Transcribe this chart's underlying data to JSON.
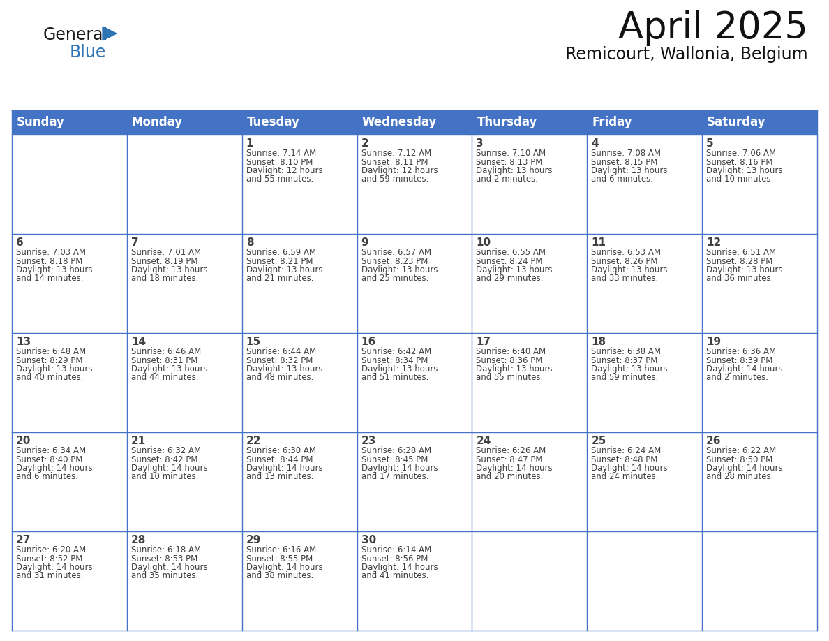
{
  "title": "April 2025",
  "subtitle": "Remicourt, Wallonia, Belgium",
  "header_bg": "#4472C4",
  "header_text_color": "#FFFFFF",
  "day_headers": [
    "Sunday",
    "Monday",
    "Tuesday",
    "Wednesday",
    "Thursday",
    "Friday",
    "Saturday"
  ],
  "title_fontsize": 38,
  "subtitle_fontsize": 17,
  "header_fontsize": 12,
  "cell_day_fontsize": 11,
  "cell_info_fontsize": 8.5,
  "grid_color": "#4472C4",
  "text_color": "#404040",
  "logo_general_color": "#1a1a1a",
  "logo_blue_color": "#2E75B6",
  "weeks": [
    [
      {
        "day": "",
        "info": ""
      },
      {
        "day": "",
        "info": ""
      },
      {
        "day": "1",
        "info": "Sunrise: 7:14 AM\nSunset: 8:10 PM\nDaylight: 12 hours\nand 55 minutes."
      },
      {
        "day": "2",
        "info": "Sunrise: 7:12 AM\nSunset: 8:11 PM\nDaylight: 12 hours\nand 59 minutes."
      },
      {
        "day": "3",
        "info": "Sunrise: 7:10 AM\nSunset: 8:13 PM\nDaylight: 13 hours\nand 2 minutes."
      },
      {
        "day": "4",
        "info": "Sunrise: 7:08 AM\nSunset: 8:15 PM\nDaylight: 13 hours\nand 6 minutes."
      },
      {
        "day": "5",
        "info": "Sunrise: 7:06 AM\nSunset: 8:16 PM\nDaylight: 13 hours\nand 10 minutes."
      }
    ],
    [
      {
        "day": "6",
        "info": "Sunrise: 7:03 AM\nSunset: 8:18 PM\nDaylight: 13 hours\nand 14 minutes."
      },
      {
        "day": "7",
        "info": "Sunrise: 7:01 AM\nSunset: 8:19 PM\nDaylight: 13 hours\nand 18 minutes."
      },
      {
        "day": "8",
        "info": "Sunrise: 6:59 AM\nSunset: 8:21 PM\nDaylight: 13 hours\nand 21 minutes."
      },
      {
        "day": "9",
        "info": "Sunrise: 6:57 AM\nSunset: 8:23 PM\nDaylight: 13 hours\nand 25 minutes."
      },
      {
        "day": "10",
        "info": "Sunrise: 6:55 AM\nSunset: 8:24 PM\nDaylight: 13 hours\nand 29 minutes."
      },
      {
        "day": "11",
        "info": "Sunrise: 6:53 AM\nSunset: 8:26 PM\nDaylight: 13 hours\nand 33 minutes."
      },
      {
        "day": "12",
        "info": "Sunrise: 6:51 AM\nSunset: 8:28 PM\nDaylight: 13 hours\nand 36 minutes."
      }
    ],
    [
      {
        "day": "13",
        "info": "Sunrise: 6:48 AM\nSunset: 8:29 PM\nDaylight: 13 hours\nand 40 minutes."
      },
      {
        "day": "14",
        "info": "Sunrise: 6:46 AM\nSunset: 8:31 PM\nDaylight: 13 hours\nand 44 minutes."
      },
      {
        "day": "15",
        "info": "Sunrise: 6:44 AM\nSunset: 8:32 PM\nDaylight: 13 hours\nand 48 minutes."
      },
      {
        "day": "16",
        "info": "Sunrise: 6:42 AM\nSunset: 8:34 PM\nDaylight: 13 hours\nand 51 minutes."
      },
      {
        "day": "17",
        "info": "Sunrise: 6:40 AM\nSunset: 8:36 PM\nDaylight: 13 hours\nand 55 minutes."
      },
      {
        "day": "18",
        "info": "Sunrise: 6:38 AM\nSunset: 8:37 PM\nDaylight: 13 hours\nand 59 minutes."
      },
      {
        "day": "19",
        "info": "Sunrise: 6:36 AM\nSunset: 8:39 PM\nDaylight: 14 hours\nand 2 minutes."
      }
    ],
    [
      {
        "day": "20",
        "info": "Sunrise: 6:34 AM\nSunset: 8:40 PM\nDaylight: 14 hours\nand 6 minutes."
      },
      {
        "day": "21",
        "info": "Sunrise: 6:32 AM\nSunset: 8:42 PM\nDaylight: 14 hours\nand 10 minutes."
      },
      {
        "day": "22",
        "info": "Sunrise: 6:30 AM\nSunset: 8:44 PM\nDaylight: 14 hours\nand 13 minutes."
      },
      {
        "day": "23",
        "info": "Sunrise: 6:28 AM\nSunset: 8:45 PM\nDaylight: 14 hours\nand 17 minutes."
      },
      {
        "day": "24",
        "info": "Sunrise: 6:26 AM\nSunset: 8:47 PM\nDaylight: 14 hours\nand 20 minutes."
      },
      {
        "day": "25",
        "info": "Sunrise: 6:24 AM\nSunset: 8:48 PM\nDaylight: 14 hours\nand 24 minutes."
      },
      {
        "day": "26",
        "info": "Sunrise: 6:22 AM\nSunset: 8:50 PM\nDaylight: 14 hours\nand 28 minutes."
      }
    ],
    [
      {
        "day": "27",
        "info": "Sunrise: 6:20 AM\nSunset: 8:52 PM\nDaylight: 14 hours\nand 31 minutes."
      },
      {
        "day": "28",
        "info": "Sunrise: 6:18 AM\nSunset: 8:53 PM\nDaylight: 14 hours\nand 35 minutes."
      },
      {
        "day": "29",
        "info": "Sunrise: 6:16 AM\nSunset: 8:55 PM\nDaylight: 14 hours\nand 38 minutes."
      },
      {
        "day": "30",
        "info": "Sunrise: 6:14 AM\nSunset: 8:56 PM\nDaylight: 14 hours\nand 41 minutes."
      },
      {
        "day": "",
        "info": ""
      },
      {
        "day": "",
        "info": ""
      },
      {
        "day": "",
        "info": ""
      }
    ]
  ]
}
